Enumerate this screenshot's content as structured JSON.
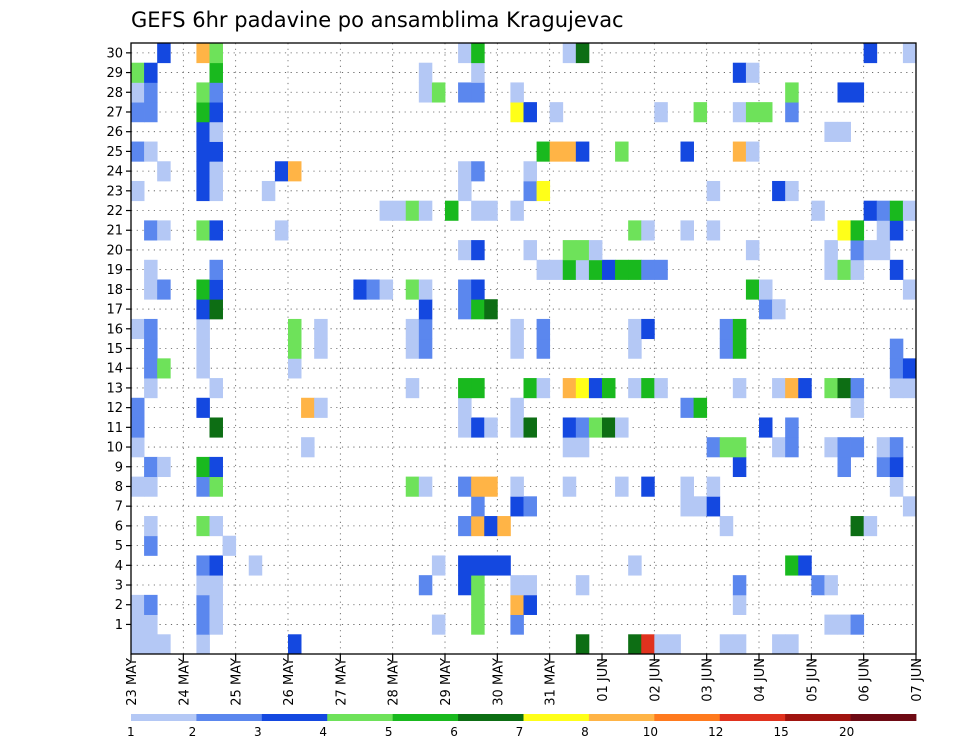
{
  "chart_data": {
    "type": "heatmap",
    "title": "GEFS 6hr padavine po ansamblima Kragujevac",
    "xlabel": "",
    "ylabel": "",
    "members": [
      1,
      30
    ],
    "time_steps": 60,
    "grid": "dotted",
    "x_ticks": [
      {
        "label": "23 MAY",
        "step": 0
      },
      {
        "label": "24 MAY",
        "step": 4
      },
      {
        "label": "25 MAY",
        "step": 8
      },
      {
        "label": "26 MAY",
        "step": 12
      },
      {
        "label": "27 MAY",
        "step": 16
      },
      {
        "label": "28 MAY",
        "step": 20
      },
      {
        "label": "29 MAY",
        "step": 24
      },
      {
        "label": "30 MAY",
        "step": 28
      },
      {
        "label": "31 MAY",
        "step": 32
      },
      {
        "label": "01 JUN",
        "step": 36
      },
      {
        "label": "02 JUN",
        "step": 40
      },
      {
        "label": "03 JUN",
        "step": 44
      },
      {
        "label": "04 JUN",
        "step": 48
      },
      {
        "label": "05 JUN",
        "step": 52
      },
      {
        "label": "06 JUN",
        "step": 56
      },
      {
        "label": "07 JUN",
        "step": 60
      }
    ],
    "colorbar": {
      "levels": [
        1,
        2,
        3,
        4,
        5,
        6,
        7,
        8,
        10,
        12,
        15,
        20
      ],
      "colors": [
        "#b4c8f5",
        "#5b87ee",
        "#1448e0",
        "#6ee25a",
        "#19b91e",
        "#0d6e14",
        "#ffff19",
        "#ffb446",
        "#ff7a1e",
        "#e0321e",
        "#a0140f",
        "#6e0a14"
      ]
    },
    "cells": [
      [
        0,
        0,
        0
      ],
      [
        1,
        0,
        0
      ],
      [
        2,
        0,
        0
      ],
      [
        5,
        0,
        0
      ],
      [
        12,
        0,
        2
      ],
      [
        34,
        0,
        5
      ],
      [
        38,
        0,
        5
      ],
      [
        39,
        0,
        9
      ],
      [
        40,
        0,
        0
      ],
      [
        41,
        0,
        0
      ],
      [
        45,
        0,
        0
      ],
      [
        46,
        0,
        0
      ],
      [
        49,
        0,
        0
      ],
      [
        50,
        0,
        0
      ],
      [
        0,
        1,
        0
      ],
      [
        1,
        1,
        0
      ],
      [
        5,
        1,
        1
      ],
      [
        6,
        1,
        0
      ],
      [
        23,
        1,
        0
      ],
      [
        26,
        1,
        3
      ],
      [
        29,
        1,
        1
      ],
      [
        53,
        1,
        0
      ],
      [
        54,
        1,
        0
      ],
      [
        55,
        1,
        1
      ],
      [
        0,
        2,
        0
      ],
      [
        1,
        2,
        1
      ],
      [
        5,
        2,
        1
      ],
      [
        6,
        2,
        0
      ],
      [
        26,
        2,
        3
      ],
      [
        29,
        2,
        7
      ],
      [
        30,
        2,
        2
      ],
      [
        46,
        2,
        0
      ],
      [
        5,
        3,
        0
      ],
      [
        6,
        3,
        0
      ],
      [
        22,
        3,
        1
      ],
      [
        25,
        3,
        2
      ],
      [
        26,
        3,
        3
      ],
      [
        29,
        3,
        0
      ],
      [
        30,
        3,
        0
      ],
      [
        34,
        3,
        0
      ],
      [
        46,
        3,
        1
      ],
      [
        52,
        3,
        1
      ],
      [
        53,
        3,
        0
      ],
      [
        5,
        4,
        1
      ],
      [
        6,
        4,
        2
      ],
      [
        9,
        4,
        0
      ],
      [
        23,
        4,
        0
      ],
      [
        25,
        4,
        2
      ],
      [
        26,
        4,
        2
      ],
      [
        27,
        4,
        2
      ],
      [
        28,
        4,
        2
      ],
      [
        38,
        4,
        0
      ],
      [
        50,
        4,
        4
      ],
      [
        51,
        4,
        2
      ],
      [
        1,
        5,
        1
      ],
      [
        7,
        5,
        0
      ],
      [
        1,
        6,
        0
      ],
      [
        5,
        6,
        3
      ],
      [
        6,
        6,
        0
      ],
      [
        25,
        6,
        1
      ],
      [
        26,
        6,
        7
      ],
      [
        27,
        6,
        2
      ],
      [
        28,
        6,
        7
      ],
      [
        45,
        6,
        0
      ],
      [
        55,
        6,
        5
      ],
      [
        56,
        6,
        0
      ],
      [
        26,
        7,
        1
      ],
      [
        29,
        7,
        2
      ],
      [
        30,
        7,
        1
      ],
      [
        42,
        7,
        0
      ],
      [
        43,
        7,
        0
      ],
      [
        44,
        7,
        2
      ],
      [
        59,
        7,
        0
      ],
      [
        0,
        8,
        0
      ],
      [
        1,
        8,
        0
      ],
      [
        5,
        8,
        1
      ],
      [
        6,
        8,
        3
      ],
      [
        21,
        8,
        3
      ],
      [
        22,
        8,
        0
      ],
      [
        25,
        8,
        1
      ],
      [
        26,
        8,
        7
      ],
      [
        27,
        8,
        7
      ],
      [
        29,
        8,
        0
      ],
      [
        33,
        8,
        0
      ],
      [
        37,
        8,
        0
      ],
      [
        39,
        8,
        2
      ],
      [
        42,
        8,
        0
      ],
      [
        44,
        8,
        0
      ],
      [
        58,
        8,
        0
      ],
      [
        1,
        9,
        1
      ],
      [
        2,
        9,
        0
      ],
      [
        5,
        9,
        4
      ],
      [
        6,
        9,
        2
      ],
      [
        46,
        9,
        2
      ],
      [
        54,
        9,
        1
      ],
      [
        57,
        9,
        1
      ],
      [
        58,
        9,
        2
      ],
      [
        0,
        10,
        0
      ],
      [
        13,
        10,
        0
      ],
      [
        33,
        10,
        0
      ],
      [
        34,
        10,
        0
      ],
      [
        44,
        10,
        1
      ],
      [
        45,
        10,
        3
      ],
      [
        46,
        10,
        3
      ],
      [
        49,
        10,
        0
      ],
      [
        50,
        10,
        1
      ],
      [
        53,
        10,
        0
      ],
      [
        54,
        10,
        1
      ],
      [
        55,
        10,
        1
      ],
      [
        57,
        10,
        0
      ],
      [
        58,
        10,
        1
      ],
      [
        0,
        11,
        1
      ],
      [
        6,
        11,
        5
      ],
      [
        25,
        11,
        0
      ],
      [
        26,
        11,
        2
      ],
      [
        27,
        11,
        0
      ],
      [
        29,
        11,
        0
      ],
      [
        30,
        11,
        5
      ],
      [
        33,
        11,
        2
      ],
      [
        34,
        11,
        1
      ],
      [
        35,
        11,
        3
      ],
      [
        36,
        11,
        5
      ],
      [
        37,
        11,
        0
      ],
      [
        48,
        11,
        2
      ],
      [
        50,
        11,
        1
      ],
      [
        0,
        12,
        1
      ],
      [
        5,
        12,
        2
      ],
      [
        13,
        12,
        7
      ],
      [
        14,
        12,
        0
      ],
      [
        25,
        12,
        0
      ],
      [
        29,
        12,
        0
      ],
      [
        42,
        12,
        1
      ],
      [
        43,
        12,
        4
      ],
      [
        55,
        12,
        0
      ],
      [
        1,
        13,
        0
      ],
      [
        6,
        13,
        0
      ],
      [
        21,
        13,
        0
      ],
      [
        25,
        13,
        4
      ],
      [
        26,
        13,
        4
      ],
      [
        30,
        13,
        4
      ],
      [
        31,
        13,
        0
      ],
      [
        33,
        13,
        7
      ],
      [
        34,
        13,
        6
      ],
      [
        35,
        13,
        2
      ],
      [
        36,
        13,
        4
      ],
      [
        38,
        13,
        0
      ],
      [
        39,
        13,
        4
      ],
      [
        40,
        13,
        0
      ],
      [
        46,
        13,
        0
      ],
      [
        49,
        13,
        0
      ],
      [
        50,
        13,
        7
      ],
      [
        51,
        13,
        2
      ],
      [
        53,
        13,
        3
      ],
      [
        54,
        13,
        5
      ],
      [
        55,
        13,
        1
      ],
      [
        58,
        13,
        0
      ],
      [
        59,
        13,
        0
      ],
      [
        1,
        14,
        1
      ],
      [
        2,
        14,
        3
      ],
      [
        5,
        14,
        0
      ],
      [
        12,
        14,
        0
      ],
      [
        58,
        14,
        1
      ],
      [
        59,
        14,
        2
      ],
      [
        1,
        15,
        1
      ],
      [
        5,
        15,
        0
      ],
      [
        12,
        15,
        3
      ],
      [
        14,
        15,
        0
      ],
      [
        21,
        15,
        0
      ],
      [
        22,
        15,
        1
      ],
      [
        29,
        15,
        0
      ],
      [
        31,
        15,
        1
      ],
      [
        38,
        15,
        0
      ],
      [
        45,
        15,
        1
      ],
      [
        46,
        15,
        4
      ],
      [
        58,
        15,
        1
      ],
      [
        0,
        16,
        0
      ],
      [
        1,
        16,
        1
      ],
      [
        5,
        16,
        0
      ],
      [
        12,
        16,
        3
      ],
      [
        14,
        16,
        0
      ],
      [
        21,
        16,
        0
      ],
      [
        22,
        16,
        1
      ],
      [
        29,
        16,
        0
      ],
      [
        31,
        16,
        1
      ],
      [
        38,
        16,
        0
      ],
      [
        39,
        16,
        2
      ],
      [
        45,
        16,
        1
      ],
      [
        46,
        16,
        4
      ],
      [
        5,
        17,
        2
      ],
      [
        6,
        17,
        5
      ],
      [
        22,
        17,
        2
      ],
      [
        25,
        17,
        1
      ],
      [
        26,
        17,
        4
      ],
      [
        27,
        17,
        5
      ],
      [
        48,
        17,
        1
      ],
      [
        49,
        17,
        0
      ],
      [
        1,
        18,
        0
      ],
      [
        2,
        18,
        1
      ],
      [
        5,
        18,
        4
      ],
      [
        6,
        18,
        2
      ],
      [
        17,
        18,
        2
      ],
      [
        18,
        18,
        1
      ],
      [
        19,
        18,
        0
      ],
      [
        21,
        18,
        3
      ],
      [
        22,
        18,
        0
      ],
      [
        25,
        18,
        1
      ],
      [
        26,
        18,
        2
      ],
      [
        47,
        18,
        4
      ],
      [
        48,
        18,
        0
      ],
      [
        59,
        18,
        0
      ],
      [
        1,
        19,
        0
      ],
      [
        6,
        19,
        1
      ],
      [
        31,
        19,
        0
      ],
      [
        32,
        19,
        0
      ],
      [
        33,
        19,
        4
      ],
      [
        34,
        19,
        0
      ],
      [
        35,
        19,
        4
      ],
      [
        36,
        19,
        2
      ],
      [
        37,
        19,
        4
      ],
      [
        38,
        19,
        4
      ],
      [
        39,
        19,
        1
      ],
      [
        40,
        19,
        1
      ],
      [
        53,
        19,
        0
      ],
      [
        54,
        19,
        3
      ],
      [
        55,
        19,
        0
      ],
      [
        58,
        19,
        2
      ],
      [
        25,
        20,
        0
      ],
      [
        26,
        20,
        2
      ],
      [
        30,
        20,
        0
      ],
      [
        33,
        20,
        3
      ],
      [
        34,
        20,
        3
      ],
      [
        35,
        20,
        0
      ],
      [
        47,
        20,
        0
      ],
      [
        53,
        20,
        0
      ],
      [
        55,
        20,
        1
      ],
      [
        56,
        20,
        0
      ],
      [
        57,
        20,
        0
      ],
      [
        1,
        21,
        1
      ],
      [
        2,
        21,
        0
      ],
      [
        5,
        21,
        3
      ],
      [
        6,
        21,
        2
      ],
      [
        11,
        21,
        0
      ],
      [
        38,
        21,
        3
      ],
      [
        39,
        21,
        0
      ],
      [
        42,
        21,
        0
      ],
      [
        44,
        21,
        0
      ],
      [
        54,
        21,
        6
      ],
      [
        55,
        21,
        4
      ],
      [
        57,
        21,
        0
      ],
      [
        58,
        21,
        2
      ],
      [
        19,
        22,
        0
      ],
      [
        20,
        22,
        0
      ],
      [
        21,
        22,
        3
      ],
      [
        22,
        22,
        0
      ],
      [
        24,
        22,
        4
      ],
      [
        26,
        22,
        0
      ],
      [
        27,
        22,
        0
      ],
      [
        29,
        22,
        0
      ],
      [
        52,
        22,
        0
      ],
      [
        56,
        22,
        2
      ],
      [
        57,
        22,
        1
      ],
      [
        58,
        22,
        4
      ],
      [
        59,
        22,
        0
      ],
      [
        0,
        23,
        0
      ],
      [
        5,
        23,
        2
      ],
      [
        6,
        23,
        0
      ],
      [
        10,
        23,
        0
      ],
      [
        25,
        23,
        0
      ],
      [
        30,
        23,
        1
      ],
      [
        31,
        23,
        6
      ],
      [
        44,
        23,
        0
      ],
      [
        49,
        23,
        2
      ],
      [
        50,
        23,
        0
      ],
      [
        2,
        24,
        0
      ],
      [
        5,
        24,
        2
      ],
      [
        6,
        24,
        0
      ],
      [
        11,
        24,
        2
      ],
      [
        12,
        24,
        7
      ],
      [
        25,
        24,
        0
      ],
      [
        26,
        24,
        1
      ],
      [
        30,
        24,
        0
      ],
      [
        0,
        25,
        1
      ],
      [
        1,
        25,
        0
      ],
      [
        5,
        25,
        2
      ],
      [
        6,
        25,
        2
      ],
      [
        31,
        25,
        4
      ],
      [
        32,
        25,
        7
      ],
      [
        33,
        25,
        7
      ],
      [
        34,
        25,
        2
      ],
      [
        37,
        25,
        3
      ],
      [
        42,
        25,
        2
      ],
      [
        46,
        25,
        7
      ],
      [
        47,
        25,
        0
      ],
      [
        5,
        26,
        2
      ],
      [
        6,
        26,
        0
      ],
      [
        53,
        26,
        0
      ],
      [
        54,
        26,
        0
      ],
      [
        0,
        27,
        1
      ],
      [
        1,
        27,
        1
      ],
      [
        5,
        27,
        4
      ],
      [
        6,
        27,
        2
      ],
      [
        29,
        27,
        6
      ],
      [
        30,
        27,
        2
      ],
      [
        32,
        27,
        0
      ],
      [
        40,
        27,
        0
      ],
      [
        43,
        27,
        3
      ],
      [
        46,
        27,
        0
      ],
      [
        47,
        27,
        3
      ],
      [
        48,
        27,
        3
      ],
      [
        50,
        27,
        1
      ],
      [
        0,
        28,
        0
      ],
      [
        1,
        28,
        1
      ],
      [
        5,
        28,
        3
      ],
      [
        6,
        28,
        1
      ],
      [
        22,
        28,
        0
      ],
      [
        23,
        28,
        3
      ],
      [
        25,
        28,
        1
      ],
      [
        26,
        28,
        1
      ],
      [
        29,
        28,
        0
      ],
      [
        50,
        28,
        3
      ],
      [
        54,
        28,
        2
      ],
      [
        55,
        28,
        2
      ],
      [
        0,
        29,
        3
      ],
      [
        1,
        29,
        2
      ],
      [
        6,
        29,
        4
      ],
      [
        22,
        29,
        0
      ],
      [
        26,
        29,
        0
      ],
      [
        46,
        29,
        2
      ],
      [
        47,
        29,
        0
      ],
      [
        2,
        30,
        2
      ],
      [
        5,
        30,
        7
      ],
      [
        6,
        30,
        3
      ],
      [
        25,
        30,
        0
      ],
      [
        26,
        30,
        4
      ],
      [
        33,
        30,
        0
      ],
      [
        34,
        30,
        5
      ],
      [
        56,
        30,
        2
      ],
      [
        59,
        30,
        0
      ]
    ]
  }
}
